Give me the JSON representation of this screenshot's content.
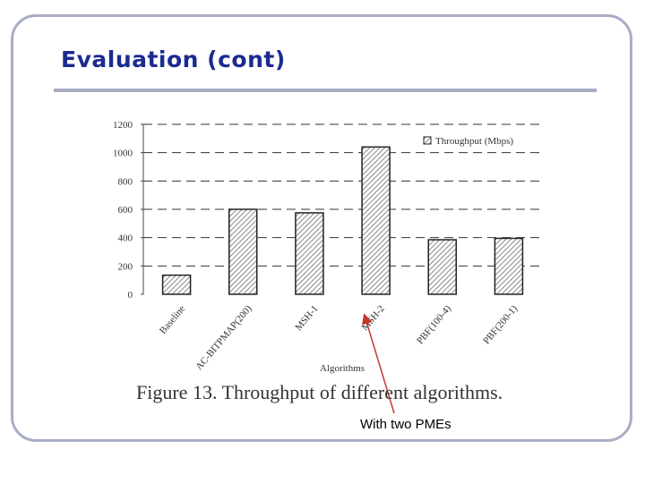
{
  "slide": {
    "title": "Evaluation (cont)",
    "caption": "Figure 13. Throughput of different algorithms.",
    "annotation": "With two PMEs"
  },
  "chart_data": {
    "type": "bar",
    "categories": [
      "Baseline",
      "AC-BITPMAP(200)",
      "MSH-1",
      "MSH-2",
      "PBF(100-4)",
      "PBF(200-1)"
    ],
    "series": [
      {
        "name": "Throughput (Mbps)",
        "values": [
          135,
          600,
          575,
          1040,
          385,
          395
        ]
      }
    ],
    "xlabel": "Algorithms",
    "ylabel": "",
    "ylim": [
      0,
      1200
    ],
    "yticks": [
      0,
      200,
      400,
      600,
      800,
      1000,
      1200
    ],
    "grid": "dashed horizontal",
    "legend_position": "top-right",
    "annotation_target": "MSH-2",
    "colors": {
      "bar_stroke": "#222222",
      "hatch": "#888888",
      "grid": "#333333",
      "annotation_arrow": "#c0392b"
    }
  }
}
